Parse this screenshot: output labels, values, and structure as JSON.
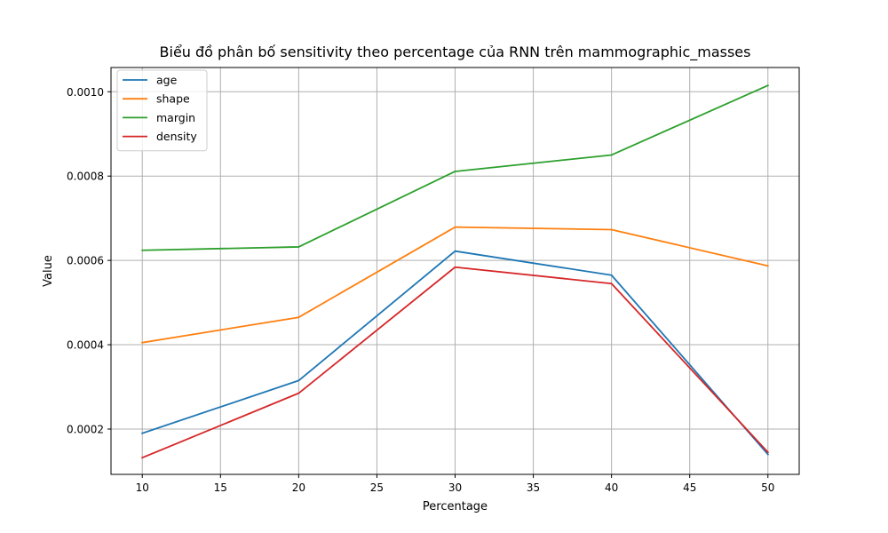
{
  "chart_data": {
    "type": "line",
    "title": "Biểu đồ phân bố sensitivity theo percentage của RNN trên mammographic_masses",
    "xlabel": "Percentage",
    "ylabel": "Value",
    "x": [
      10,
      20,
      30,
      40,
      50
    ],
    "xlim": [
      8,
      52
    ],
    "ylim": [
      9.25e-05,
      0.0010575
    ],
    "xticks": [
      10,
      15,
      20,
      25,
      30,
      35,
      40,
      45,
      50
    ],
    "yticks": [
      0.0002,
      0.0004,
      0.0006,
      0.0008,
      0.001
    ],
    "ytick_labels": [
      "0.0002",
      "0.0004",
      "0.0006",
      "0.0008",
      "0.0010"
    ],
    "grid": true,
    "legend_position": "upper-left",
    "series": [
      {
        "name": "age",
        "color": "#1f77b4",
        "values": [
          0.00019,
          0.000315,
          0.000622,
          0.000565,
          0.00014
        ]
      },
      {
        "name": "shape",
        "color": "#ff7f0e",
        "values": [
          0.000405,
          0.000465,
          0.000679,
          0.000673,
          0.000587
        ]
      },
      {
        "name": "margin",
        "color": "#2ca02c",
        "values": [
          0.000624,
          0.000632,
          0.000811,
          0.00085,
          0.001015
        ]
      },
      {
        "name": "density",
        "color": "#d62728",
        "values": [
          0.000132,
          0.000285,
          0.000584,
          0.000545,
          0.000145
        ]
      }
    ]
  }
}
